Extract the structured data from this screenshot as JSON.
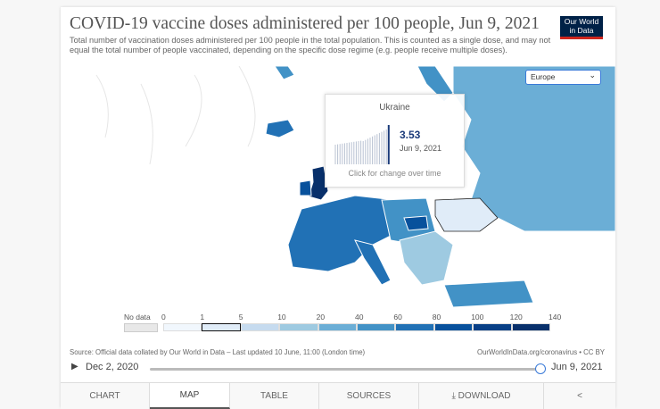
{
  "header": {
    "title": "COVID-19 vaccine doses administered per 100 people, Jun 9, 2021",
    "subtitle": "Total number of vaccination doses administered per 100 people in the total population. This is counted as a single dose, and may not equal the total number of people vaccinated, depending on the specific dose regime (e.g. people receive multiple doses).",
    "logo": "Our World in Data"
  },
  "region_select": {
    "value": "Europe"
  },
  "tooltip": {
    "country": "Ukraine",
    "value": "3.53",
    "date": "Jun 9, 2021",
    "hint": "Click for change over time"
  },
  "legend": {
    "no_data": "No data",
    "ticks": [
      "0",
      "1",
      "5",
      "10",
      "20",
      "40",
      "60",
      "80",
      "100",
      "120",
      "140"
    ],
    "colors": [
      "#f1f7fd",
      "#e0ecf8",
      "#c6dbef",
      "#9ecae1",
      "#6baed6",
      "#4292c6",
      "#2171b5",
      "#08519c",
      "#083f86",
      "#08306b"
    ],
    "highlighted_bin": "1–5"
  },
  "footer": {
    "source": "Source: Official data collated by Our World in Data – Last updated 10 June, 11:00 (London time)",
    "license": "OurWorldInData.org/coronavirus • CC BY"
  },
  "timeline": {
    "start": "Dec 2, 2020",
    "end": "Jun 9, 2021",
    "position": 1.0
  },
  "tabs": [
    {
      "label": "CHART"
    },
    {
      "label": "MAP",
      "active": true
    },
    {
      "label": "TABLE"
    },
    {
      "label": "SOURCES"
    },
    {
      "label": "DOWNLOAD"
    },
    {
      "label": ""
    }
  ]
}
